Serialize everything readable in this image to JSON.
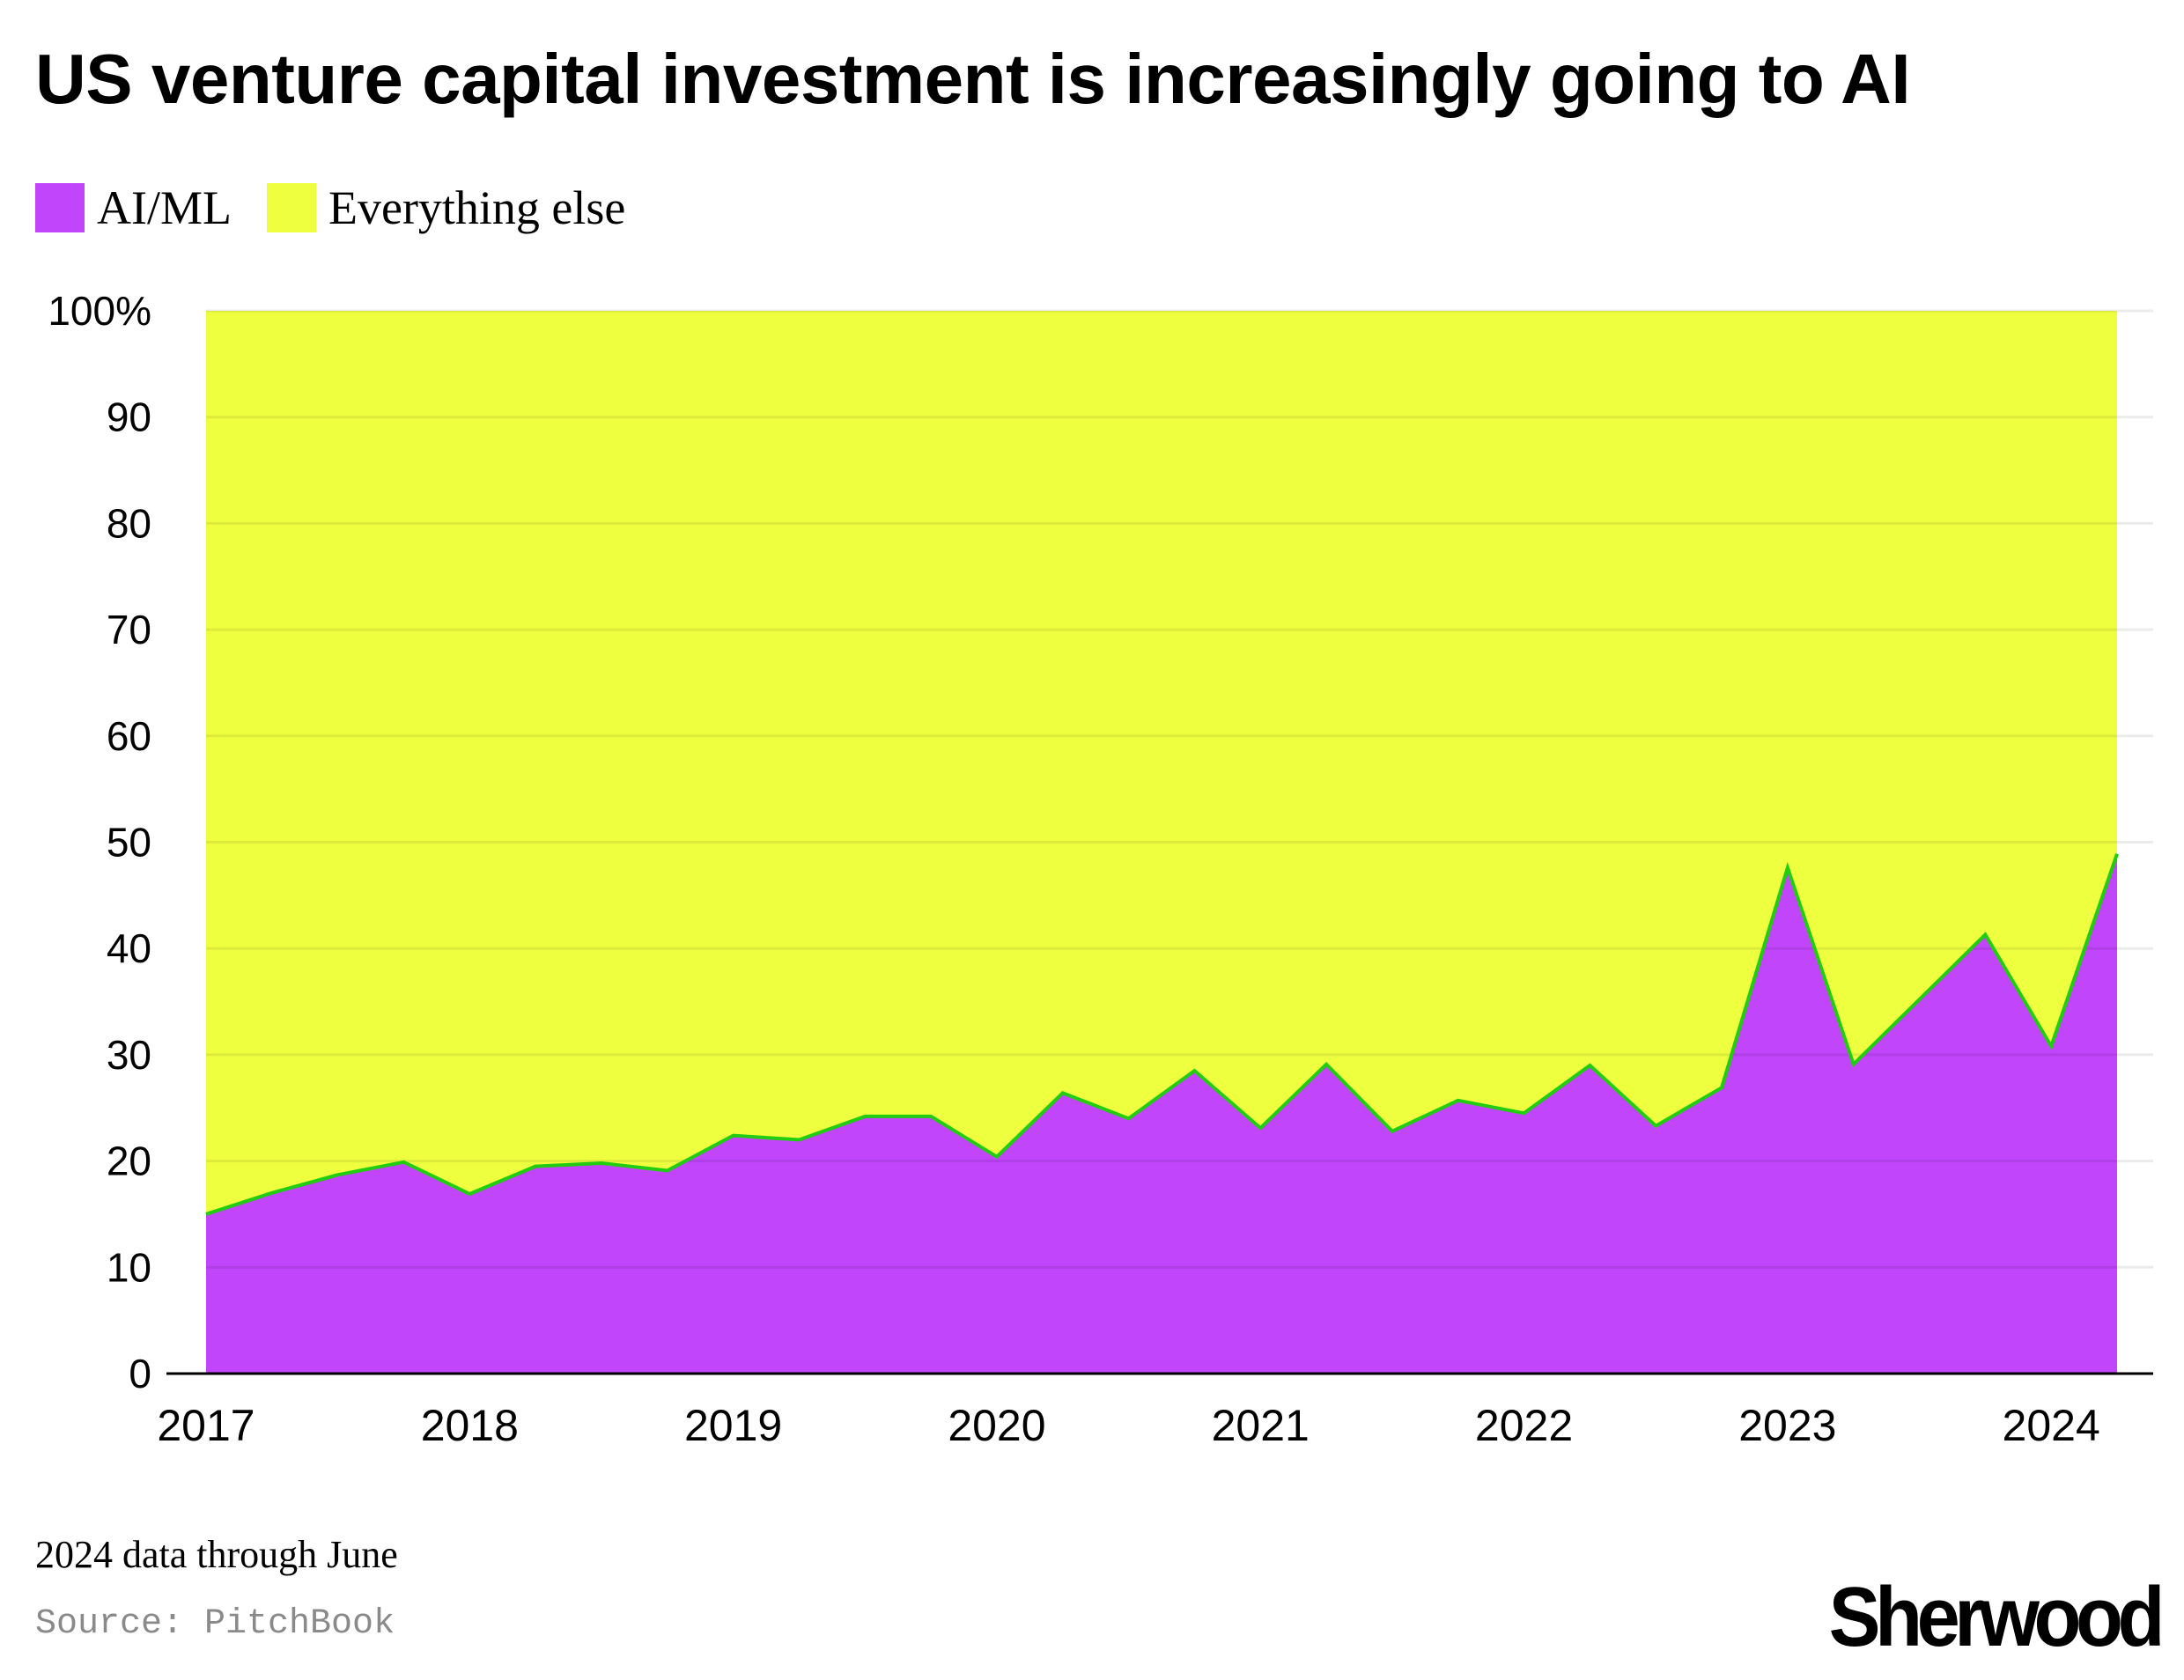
{
  "title": "US venture capital investment is increasingly going to AI",
  "legend": [
    {
      "label": "AI/ML",
      "color": "#c045fb"
    },
    {
      "label": "Everything else",
      "color": "#eeff40"
    }
  ],
  "note": "2024 data through June",
  "source": "Source: PitchBook",
  "logo": "Sherwood",
  "chart_data": {
    "type": "area",
    "stacked": true,
    "normalized_percent": true,
    "x_tick_labels": [
      "2017",
      "2018",
      "2019",
      "2020",
      "2021",
      "2022",
      "2023",
      "2024"
    ],
    "y_tick_labels": [
      "0",
      "10",
      "20",
      "30",
      "40",
      "50",
      "60",
      "70",
      "80",
      "90",
      "100%"
    ],
    "ylim": [
      0,
      100
    ],
    "grid": "horizontal",
    "line_color": "#22cc11",
    "x": [
      "2017 Q1",
      "2017 Q2",
      "2017 Q3",
      "2017 Q4",
      "2018 Q1",
      "2018 Q2",
      "2018 Q3",
      "2018 Q4",
      "2019 Q1",
      "2019 Q2",
      "2019 Q3",
      "2019 Q4",
      "2020 Q1",
      "2020 Q2",
      "2020 Q3",
      "2020 Q4",
      "2021 Q1",
      "2021 Q2",
      "2021 Q3",
      "2021 Q4",
      "2022 Q1",
      "2022 Q2",
      "2022 Q3",
      "2022 Q4",
      "2023 Q1",
      "2023 Q2",
      "2023 Q3",
      "2023 Q4",
      "2024 Q1",
      "2024 Q2"
    ],
    "series": [
      {
        "name": "AI/ML",
        "values": [
          15.0,
          17.0,
          18.7,
          19.9,
          16.9,
          19.5,
          19.8,
          19.1,
          22.4,
          22.0,
          24.2,
          24.2,
          20.4,
          26.4,
          24.0,
          28.5,
          23.1,
          29.1,
          22.8,
          25.7,
          24.5,
          29.0,
          23.3,
          26.9,
          47.6,
          29.1,
          35.2,
          41.3,
          30.8,
          48.9
        ]
      },
      {
        "name": "Everything else",
        "values": [
          85.0,
          83.0,
          81.3,
          80.1,
          83.1,
          80.5,
          80.2,
          80.9,
          77.6,
          78.0,
          75.8,
          75.8,
          79.6,
          73.6,
          76.0,
          71.5,
          76.9,
          70.9,
          77.2,
          74.3,
          75.5,
          71.0,
          76.7,
          73.1,
          52.4,
          70.9,
          64.8,
          58.7,
          69.2,
          51.1
        ]
      }
    ]
  }
}
